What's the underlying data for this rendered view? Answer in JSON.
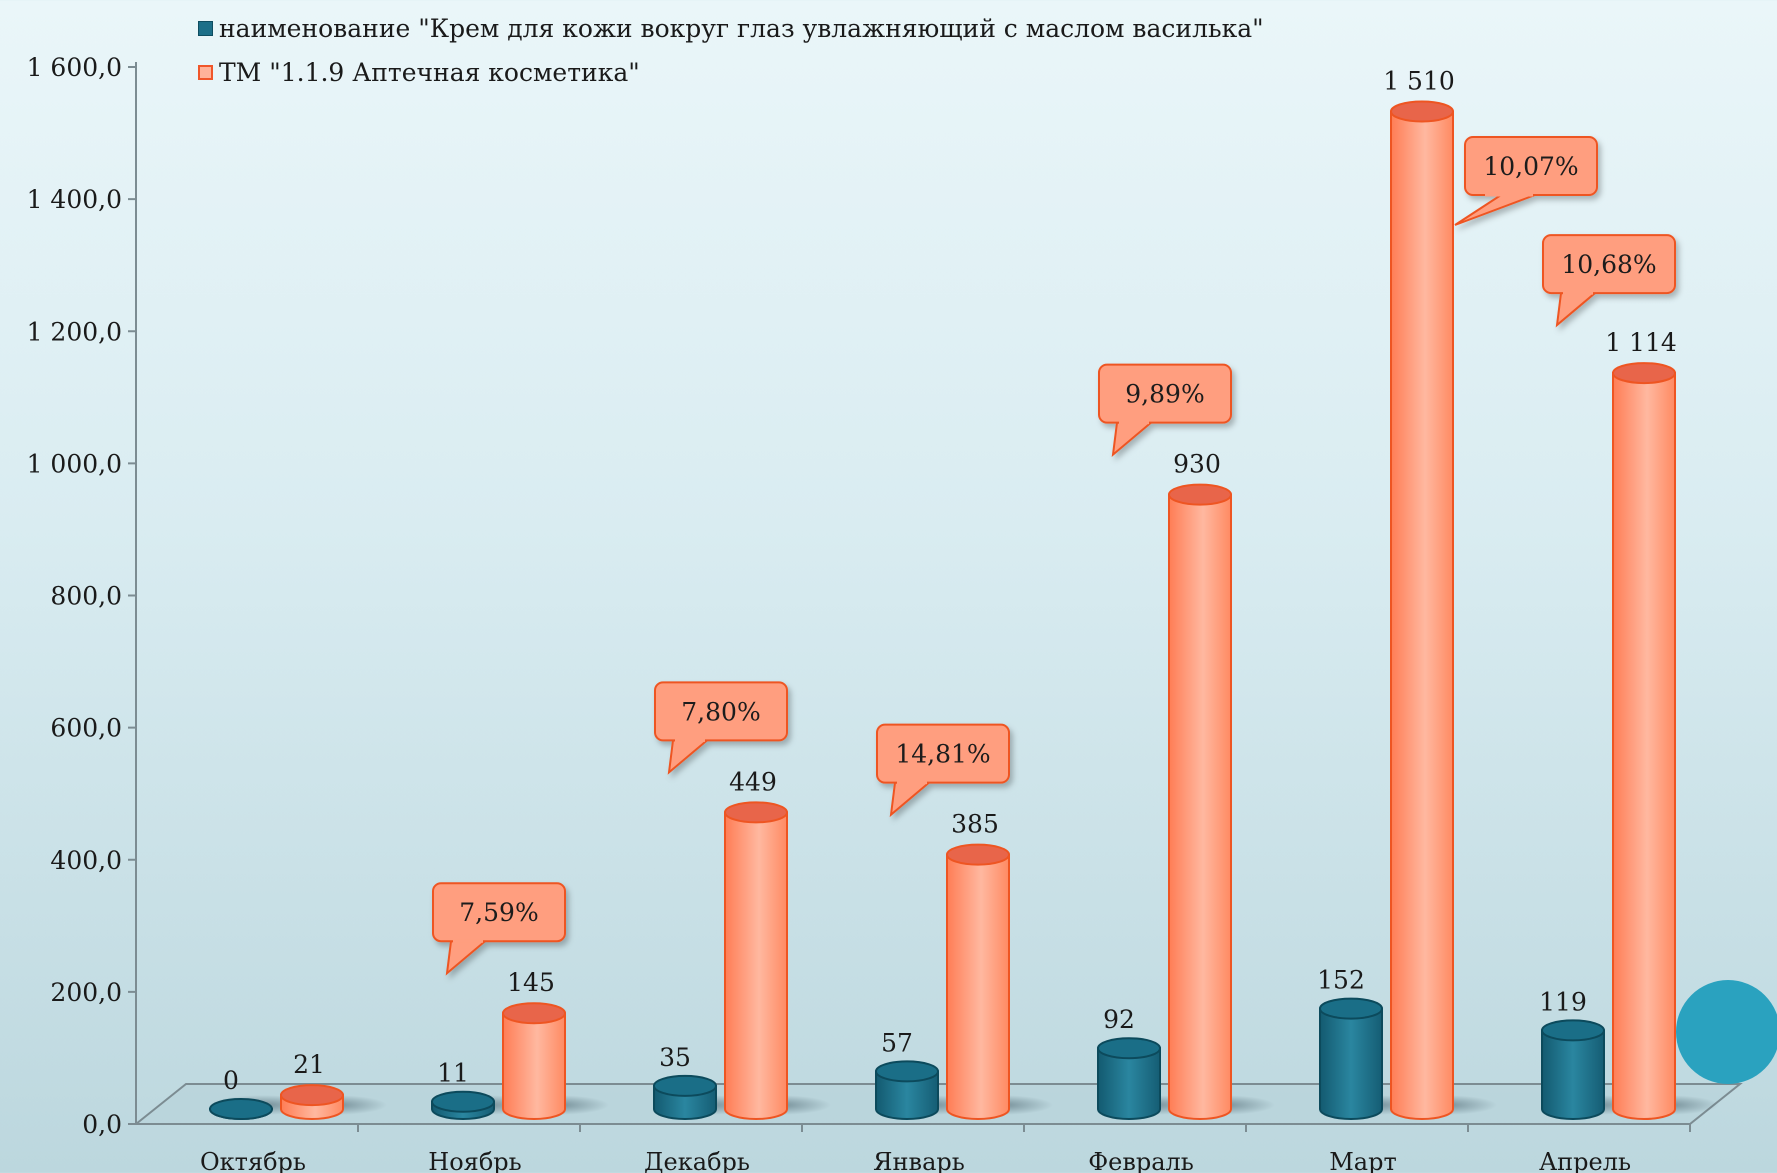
{
  "chart_data": {
    "type": "bar",
    "categories": [
      "Октябрь",
      "Ноябрь",
      "Декабрь",
      "Январь",
      "Февраль",
      "Март",
      "Апрель"
    ],
    "series": [
      {
        "name": "наименование \"Крем для кожи вокруг глаз увлажняющий с маслом василька\"",
        "values": [
          0,
          11,
          35,
          57,
          92,
          152,
          119
        ],
        "labels": [
          "0",
          "11",
          "35",
          "57",
          "92",
          "152",
          "119"
        ],
        "color": "#1d6f88"
      },
      {
        "name": "ТМ \"1.1.9 Аптечная косметика\"",
        "values": [
          21,
          145,
          449,
          385,
          930,
          1510,
          1114
        ],
        "labels": [
          "21",
          "145",
          "449",
          "385",
          "930",
          "1 510",
          "1 114"
        ],
        "color": "#ff8c68"
      }
    ],
    "callouts": [
      "",
      "7,59%",
      "7,80%",
      "14,81%",
      "9,89%",
      "10,07%",
      "10,68%"
    ],
    "yticks": [
      "0,0",
      "200,0",
      "400,0",
      "600,0",
      "800,0",
      "1 000,0",
      "1 200,0",
      "1 400,0",
      "1 600,0"
    ],
    "ylim": [
      0,
      1600
    ],
    "grid": false,
    "legend": "top-left"
  }
}
